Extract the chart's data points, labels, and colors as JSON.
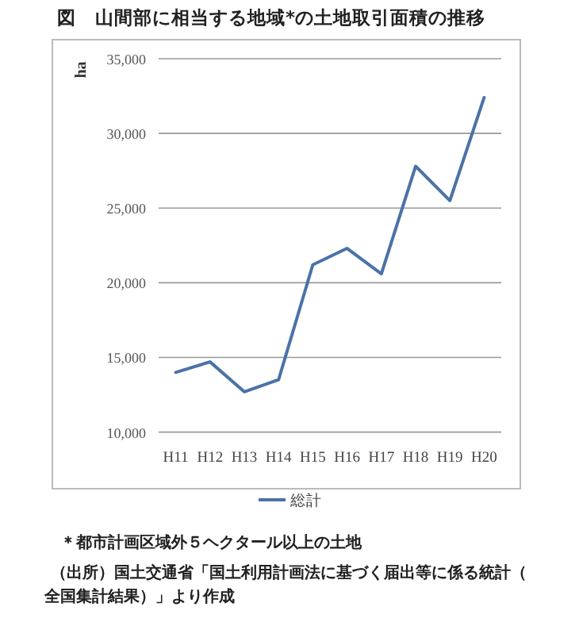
{
  "chart_data": {
    "type": "line",
    "title": "図　山間部に相当する地域*の土地取引面積の推移",
    "ylabel": "ha",
    "categories": [
      "H11",
      "H12",
      "H13",
      "H14",
      "H15",
      "H16",
      "H17",
      "H18",
      "H19",
      "H20"
    ],
    "series": [
      {
        "name": "総計",
        "color": "#4a72a8",
        "values": [
          14000,
          14700,
          12700,
          13500,
          21200,
          22300,
          20600,
          27800,
          25500,
          32400
        ]
      }
    ],
    "ylim": [
      10000,
      35000
    ],
    "yticks": [
      {
        "value": 10000,
        "label": "10,000"
      },
      {
        "value": 15000,
        "label": "15,000"
      },
      {
        "value": 20000,
        "label": "20,000"
      },
      {
        "value": 25000,
        "label": "25,000"
      },
      {
        "value": 30000,
        "label": "30,000"
      },
      {
        "value": 35000,
        "label": "35,000"
      }
    ],
    "grid": "y",
    "legend": "bottom",
    "marker": "none",
    "line_style": "solid",
    "annotations": [
      "＊都市計画区域外５ヘクタール以上の土地",
      "（出所）国土交通省「国土利用計画法に基づく届出等に係る統計（全国集計結果）」より作成"
    ]
  }
}
